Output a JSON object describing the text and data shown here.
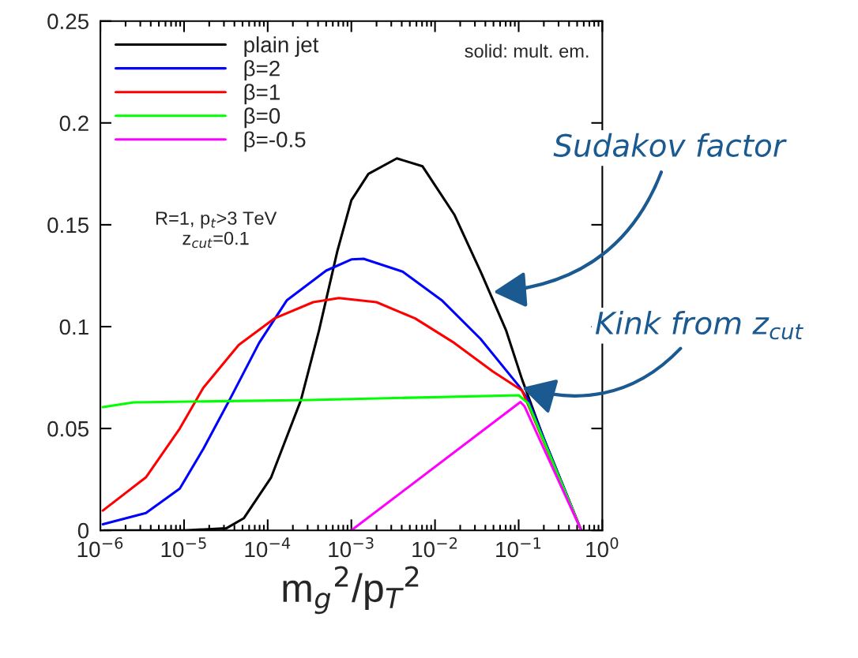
{
  "chart_data": {
    "type": "line",
    "xlabel": "m$_{g}$$^{2}$/p$_{T}$$^{2}$",
    "log": "x",
    "grid": false,
    "legend": "top left",
    "marker": "none",
    "line_style": "solid",
    "xlim": [
      1e-06,
      1
    ],
    "ylim": [
      0,
      0.25
    ],
    "xticks": [
      {
        "value": 1e-06,
        "label": "10$^{−6}$"
      },
      {
        "value": 1e-05,
        "label": "10$^{−5}$"
      },
      {
        "value": 0.0001,
        "label": "10$^{−4}$"
      },
      {
        "value": 0.001,
        "label": "10$^{−3}$"
      },
      {
        "value": 0.01,
        "label": "10$^{−2}$"
      },
      {
        "value": 0.1,
        "label": "10$^{−1}$"
      },
      {
        "value": 1,
        "label": "10$^{0}$"
      }
    ],
    "yticks": [
      0,
      0.05,
      0.1,
      0.15,
      0.2,
      0.25
    ],
    "series": [
      {
        "name": "plain jet",
        "color": "#000000",
        "x": [
          1.1e-06,
          1e-05,
          3.2e-05,
          5.2e-05,
          0.00011,
          0.00025,
          0.00041,
          0.00068,
          0.001,
          0.0016,
          0.0035,
          0.0071,
          0.017,
          0.036,
          0.071,
          0.11,
          0.2,
          0.56
        ],
        "values": [
          0,
          0,
          0.001,
          0.006,
          0.026,
          0.064,
          0.098,
          0.137,
          0.162,
          0.175,
          0.1826,
          0.1787,
          0.155,
          0.126,
          0.098,
          0.074,
          0.045,
          0
        ]
      },
      {
        "name": "β=2",
        "color": "#0000ff",
        "x": [
          1.07e-06,
          3.5e-06,
          8.9e-06,
          1.7e-05,
          3.6e-05,
          7.9e-05,
          0.00017,
          0.0005,
          0.001,
          0.0014,
          0.0041,
          0.012,
          0.035,
          0.1,
          0.13,
          0.56
        ],
        "values": [
          0.003,
          0.0085,
          0.0205,
          0.04,
          0.065,
          0.092,
          0.113,
          0.1275,
          0.133,
          0.1333,
          0.127,
          0.113,
          0.094,
          0.071,
          0.064,
          0
        ]
      },
      {
        "name": "β=1",
        "color": "#ff0000",
        "x": [
          1.07e-06,
          3.5e-06,
          8.9e-06,
          1.7e-05,
          4.5e-05,
          0.00012,
          0.00035,
          0.00071,
          0.002,
          0.0058,
          0.017,
          0.049,
          0.11,
          0.56
        ],
        "values": [
          0.0097,
          0.026,
          0.05,
          0.07,
          0.091,
          0.104,
          0.112,
          0.114,
          0.112,
          0.104,
          0.092,
          0.078,
          0.0686,
          0
        ]
      },
      {
        "name": "β=0",
        "color": "#00ff00",
        "x": [
          1.07e-06,
          2.5e-06,
          0.00032,
          0.1,
          0.13,
          0.56
        ],
        "values": [
          0.0605,
          0.0628,
          0.064,
          0.0663,
          0.0624,
          0
        ]
      },
      {
        "name": "β=-0.5",
        "color": "#ff00ff",
        "x": [
          0.001,
          0.105,
          0.117,
          0.56
        ],
        "values": [
          0,
          0.063,
          0.061,
          0
        ]
      }
    ],
    "annotations": [
      "solid: mult. em.",
      "R=1, p$_{t}$>3 TeV\nz$_{cut}$=0.1",
      {
        "text": "Sudakov factor",
        "x": 0.05,
        "y": 0.117
      },
      {
        "text": "Kink from z$_{cut}$",
        "x": 0.11,
        "y": 0.07
      }
    ]
  }
}
